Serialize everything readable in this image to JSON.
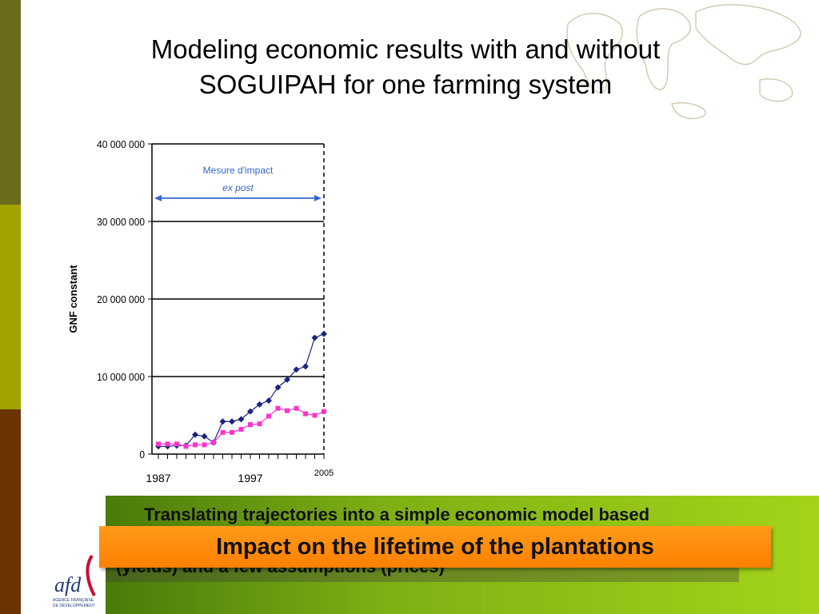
{
  "slide": {
    "title": "Modeling economic results with and without SOGUIPAH for one farming system",
    "hidden_text_line1": "Translating trajectories into a simple economic model based",
    "hidden_text_line2": "(yields) and a few assumptions (prices)",
    "banner": "Impact on the lifetime of the plantations",
    "logo_text": "afd",
    "logo_subtext": "AGENCE FRANÇAISE DE DÉVELOPPEMENT"
  },
  "colors": {
    "series_with": "#1a237e",
    "series_without": "#ff33cc",
    "arrow": "#3366cc",
    "banner": "#ff8c00"
  },
  "chart_data": {
    "type": "line",
    "ylabel": "GNF constant",
    "ylim": [
      0,
      40000000
    ],
    "yticks": [
      0,
      10000000,
      20000000,
      30000000,
      40000000
    ],
    "ytick_labels": [
      "0",
      "10 000 000",
      "20 000 000",
      "30 000 000",
      "40 000 000"
    ],
    "xlim": [
      1987,
      2005
    ],
    "xtick_labels": [
      {
        "x": 1987,
        "label": "1987"
      },
      {
        "x": 1997,
        "label": "1997"
      },
      {
        "x": 2005,
        "label": "2005"
      }
    ],
    "annotation": {
      "line1": "Mesure d'impact",
      "line2": "ex post",
      "y": 33000000,
      "x_from": 1987,
      "x_to": 2005
    },
    "x": [
      1987,
      1988,
      1989,
      1990,
      1991,
      1992,
      1993,
      1994,
      1995,
      1996,
      1997,
      1998,
      1999,
      2000,
      2001,
      2002,
      2003,
      2004,
      2005
    ],
    "series": [
      {
        "color": "#1a237e",
        "marker": "diamond",
        "values": [
          1000000,
          1000000,
          1100000,
          1100000,
          2500000,
          2300000,
          1500000,
          4200000,
          4200000,
          4500000,
          5500000,
          6400000,
          6900000,
          8600000,
          9600000,
          10900000,
          11300000,
          15000000,
          15500000
        ]
      },
      {
        "color": "#ff33cc",
        "marker": "square",
        "values": [
          1300000,
          1300000,
          1300000,
          1000000,
          1200000,
          1200000,
          1500000,
          2800000,
          2800000,
          3200000,
          3800000,
          3900000,
          4900000,
          5900000,
          5600000,
          5900000,
          5200000,
          5000000,
          5500000
        ]
      }
    ]
  }
}
